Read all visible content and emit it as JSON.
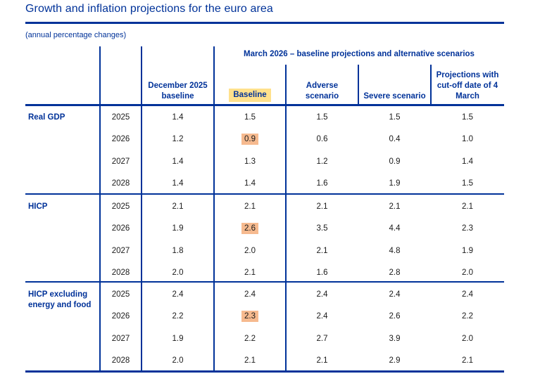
{
  "title": "Growth and inflation projections for the euro area",
  "subtitle": "(annual percentage changes)",
  "colors": {
    "accent_blue": "#003299",
    "baseline_header_highlight": "#FFE18C",
    "baseline_cell_highlight": "#F6BA8F",
    "value_text": "#1a1a1a"
  },
  "table": {
    "group_header": "March 2026 – baseline projections and alternative scenarios",
    "col_headers": {
      "dec": "December 2025 baseline",
      "baseline": "Baseline",
      "adverse": "Adverse scenario",
      "severe": "Severe scenario",
      "cutoff": "Projections with cut-off date of 4 March"
    },
    "value_columns": [
      "December 2025 baseline",
      "Baseline",
      "Adverse scenario",
      "Severe scenario",
      "Projections with cut-off date of 4 March"
    ],
    "sections": [
      {
        "label": "Real GDP",
        "rows": [
          {
            "year": "2025",
            "values": [
              "1.4",
              "1.5",
              "1.5",
              "1.5",
              "1.5"
            ],
            "highlight_index": null
          },
          {
            "year": "2026",
            "values": [
              "1.2",
              "0.9",
              "0.6",
              "0.4",
              "1.0"
            ],
            "highlight_index": 1
          },
          {
            "year": "2027",
            "values": [
              "1.4",
              "1.3",
              "1.2",
              "0.9",
              "1.4"
            ],
            "highlight_index": null
          },
          {
            "year": "2028",
            "values": [
              "1.4",
              "1.4",
              "1.6",
              "1.9",
              "1.5"
            ],
            "highlight_index": null
          }
        ]
      },
      {
        "label": "HICP",
        "rows": [
          {
            "year": "2025",
            "values": [
              "2.1",
              "2.1",
              "2.1",
              "2.1",
              "2.1"
            ],
            "highlight_index": null
          },
          {
            "year": "2026",
            "values": [
              "1.9",
              "2.6",
              "3.5",
              "4.4",
              "2.3"
            ],
            "highlight_index": 1
          },
          {
            "year": "2027",
            "values": [
              "1.8",
              "2.0",
              "2.1",
              "4.8",
              "1.9"
            ],
            "highlight_index": null
          },
          {
            "year": "2028",
            "values": [
              "2.0",
              "2.1",
              "1.6",
              "2.8",
              "2.0"
            ],
            "highlight_index": null
          }
        ]
      },
      {
        "label": "HICP excluding energy and food",
        "rows": [
          {
            "year": "2025",
            "values": [
              "2.4",
              "2.4",
              "2.4",
              "2.4",
              "2.4"
            ],
            "highlight_index": null
          },
          {
            "year": "2026",
            "values": [
              "2.2",
              "2.3",
              "2.4",
              "2.6",
              "2.2"
            ],
            "highlight_index": 1
          },
          {
            "year": "2027",
            "values": [
              "1.9",
              "2.2",
              "2.7",
              "3.9",
              "2.0"
            ],
            "highlight_index": null
          },
          {
            "year": "2028",
            "values": [
              "2.0",
              "2.1",
              "2.1",
              "2.9",
              "2.1"
            ],
            "highlight_index": null
          }
        ]
      }
    ]
  }
}
